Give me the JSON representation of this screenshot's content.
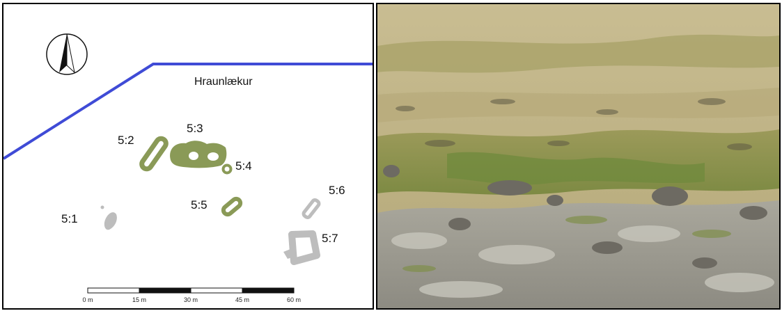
{
  "map": {
    "place_name": "Hraunlækur",
    "features": [
      {
        "id": "5:1",
        "label": "5:1",
        "status": "grey"
      },
      {
        "id": "5:2",
        "label": "5:2",
        "status": "green"
      },
      {
        "id": "5:3",
        "label": "5:3",
        "status": "green"
      },
      {
        "id": "5:4",
        "label": "5:4",
        "status": "green"
      },
      {
        "id": "5:5",
        "label": "5:5",
        "status": "green"
      },
      {
        "id": "5:6",
        "label": "5:6",
        "status": "grey"
      },
      {
        "id": "5:7",
        "label": "5:7",
        "status": "grey"
      }
    ],
    "scale_bar": {
      "ticks": [
        "0 m",
        "15 m",
        "30 m",
        "45 m",
        "60 m"
      ]
    },
    "north_arrow": "north-arrow-icon",
    "colors": {
      "boundary": "#3f4bd6",
      "green_feature": "#8a9a57",
      "grey_feature": "#bdbdbd"
    }
  },
  "photo": {
    "subject": "landscape-photo"
  }
}
